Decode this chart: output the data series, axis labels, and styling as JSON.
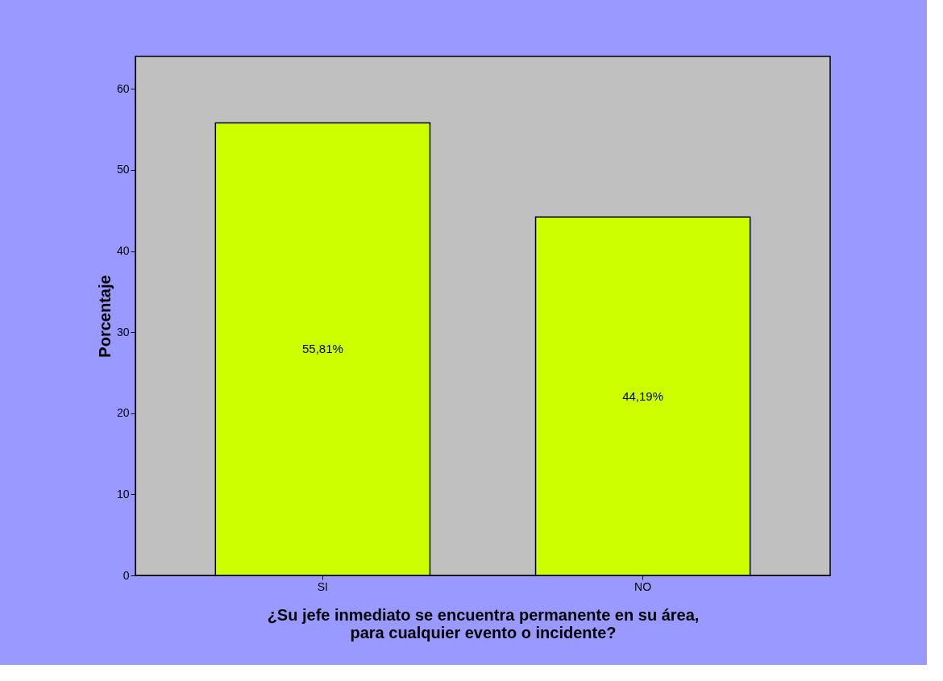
{
  "chart_data": {
    "type": "bar",
    "categories": [
      "SI",
      "NO"
    ],
    "values": [
      55.81,
      44.19
    ],
    "value_labels": [
      "55,81%",
      "44,19%"
    ],
    "color": "#ccff00",
    "ylabel": "Porcentaje",
    "xlabel": "¿Su jefe inmediato se encuentra permanente en su área,\npara cualquier evento o incidente?",
    "ylim": [
      0,
      64
    ],
    "yticks": [
      0,
      10,
      20,
      30,
      40,
      50,
      60
    ],
    "grid": false
  }
}
